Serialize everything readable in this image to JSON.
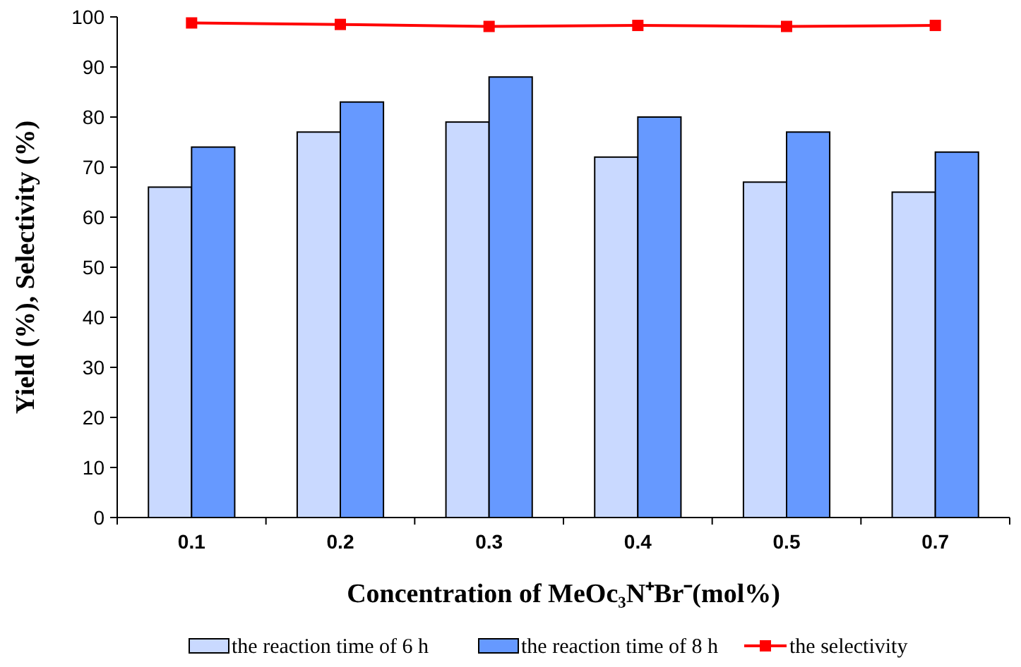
{
  "chart_data": {
    "type": "bar",
    "xlabel": "Concentration of MeOc₃N⁺Br⁻(mol%)",
    "ylabel": "Yield (%), Selectivity (%)",
    "categories": [
      "0.1",
      "0.2",
      "0.3",
      "0.4",
      "0.5",
      "0.7"
    ],
    "series": [
      {
        "name": "the reaction time of 6 h",
        "color": "#c9d9ff",
        "values": [
          66,
          77,
          79,
          72,
          67,
          65
        ]
      },
      {
        "name": "the reaction time of 8 h",
        "color": "#6699ff",
        "values": [
          74,
          83,
          88,
          80,
          77,
          73
        ]
      },
      {
        "name": "the selectivity",
        "type": "line",
        "color": "#ff0000",
        "marker": "square",
        "values": [
          98.8,
          98.5,
          98.1,
          98.3,
          98.1,
          98.3
        ]
      }
    ],
    "ylim": [
      0,
      100
    ],
    "yticks": [
      0,
      10,
      20,
      30,
      40,
      50,
      60,
      70,
      80,
      90,
      100
    ],
    "legend": "bottom"
  }
}
